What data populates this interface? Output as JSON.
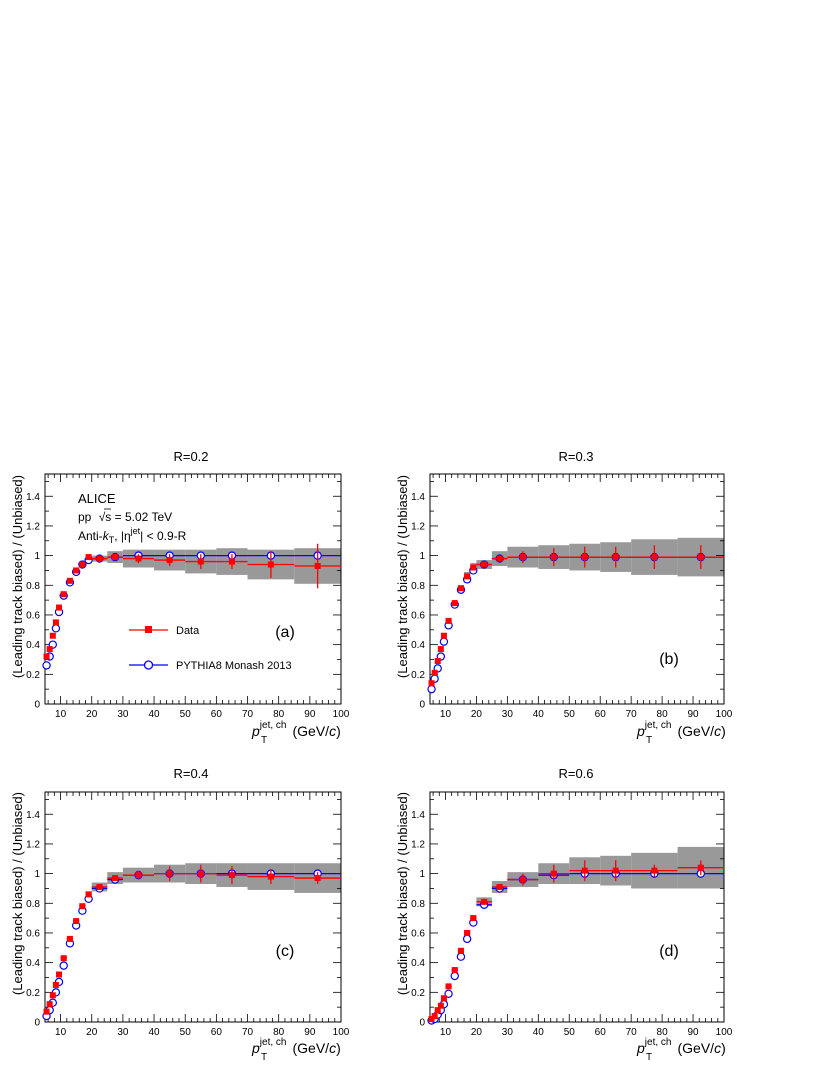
{
  "colors": {
    "data": "#ff0000",
    "pythia": "#0000ff",
    "syst_band": "#999999",
    "model_band": "#cccccc"
  },
  "common": {
    "xlabel_symbol": "p",
    "xlabel_sup": "jet, ch",
    "xlabel_sub": "T",
    "xlabel_unit_open": "(GeV/",
    "xlabel_unit_c": "c",
    "xlabel_unit_close": ")",
    "ylabel": "(Leading track biased) / (Unbiased)",
    "xlim": [
      5,
      100
    ],
    "ylim": [
      0,
      1.55
    ],
    "xticks": [
      10,
      20,
      30,
      40,
      50,
      60,
      70,
      80,
      90,
      100
    ],
    "yticks": [
      0,
      0.2,
      0.4,
      0.6,
      0.8,
      1,
      1.2,
      1.4
    ],
    "ytick_labels": [
      "0",
      "0.2",
      "0.4",
      "0.6",
      "0.8",
      "1",
      "1.2",
      "1.4"
    ]
  },
  "annotations": {
    "experiment": "ALICE",
    "energy_pp": "pp",
    "energy_sqrt": "√s",
    "energy_value": " = 5.02 TeV",
    "algo_pre": "Anti-",
    "algo_k": "k",
    "algo_sub": "T",
    "algo_mid": ", |η",
    "algo_sup": "jet",
    "algo_post": "| < 0.9-R"
  },
  "legend": {
    "data": "Data",
    "pythia": "PYTHIA8 Monash 2013",
    "placement": "left-middle"
  },
  "chart_data": [
    {
      "type": "scatter",
      "title": "R=0.2",
      "panel_label": "(a)",
      "series": [
        {
          "name": "Data",
          "x": [
            5.5,
            6.5,
            7.5,
            8.5,
            9.5,
            11,
            13,
            15,
            17,
            19,
            22.5,
            27.5,
            35,
            45,
            55,
            65,
            77.5,
            92.5
          ],
          "xerr": [
            0.5,
            0.5,
            0.5,
            0.5,
            0.5,
            1,
            1,
            1,
            1,
            1,
            2.5,
            2.5,
            5,
            5,
            5,
            5,
            7.5,
            7.5
          ],
          "y": [
            0.32,
            0.37,
            0.46,
            0.55,
            0.65,
            0.74,
            0.83,
            0.9,
            0.94,
            0.99,
            0.98,
            0.99,
            0.98,
            0.97,
            0.96,
            0.96,
            0.94,
            0.93
          ],
          "yerr": [
            0.01,
            0.01,
            0.01,
            0.01,
            0.01,
            0.01,
            0.01,
            0.01,
            0.01,
            0.01,
            0.01,
            0.01,
            0.03,
            0.04,
            0.05,
            0.05,
            0.09,
            0.15
          ],
          "syst": [
            0.01,
            0.01,
            0.01,
            0.01,
            0.01,
            0.01,
            0.01,
            0.01,
            0.01,
            0.01,
            0.02,
            0.04,
            0.06,
            0.07,
            0.08,
            0.09,
            0.1,
            0.12
          ]
        },
        {
          "name": "PYTHIA8 Monash 2013",
          "x": [
            5.5,
            6.5,
            7.5,
            8.5,
            9.5,
            11,
            13,
            15,
            17,
            19,
            22.5,
            27.5,
            35,
            45,
            55,
            65,
            77.5,
            92.5
          ],
          "xerr": [
            0.5,
            0.5,
            0.5,
            0.5,
            0.5,
            1,
            1,
            1,
            1,
            1,
            2.5,
            2.5,
            5,
            5,
            5,
            5,
            7.5,
            7.5
          ],
          "y": [
            0.26,
            0.32,
            0.4,
            0.51,
            0.62,
            0.73,
            0.82,
            0.89,
            0.94,
            0.97,
            0.98,
            0.99,
            1.0,
            1.0,
            1.0,
            1.0,
            1.0,
            1.0
          ]
        }
      ]
    },
    {
      "type": "scatter",
      "title": "R=0.3",
      "panel_label": "(b)",
      "series": [
        {
          "name": "Data",
          "x": [
            5.5,
            6.5,
            7.5,
            8.5,
            9.5,
            11,
            13,
            15,
            17,
            19,
            22.5,
            27.5,
            35,
            45,
            55,
            65,
            77.5,
            92.5
          ],
          "xerr": [
            0.5,
            0.5,
            0.5,
            0.5,
            0.5,
            1,
            1,
            1,
            1,
            1,
            2.5,
            2.5,
            5,
            5,
            5,
            5,
            7.5,
            7.5
          ],
          "y": [
            0.14,
            0.21,
            0.29,
            0.37,
            0.46,
            0.56,
            0.68,
            0.78,
            0.86,
            0.92,
            0.94,
            0.98,
            0.99,
            0.99,
            0.99,
            0.99,
            0.99,
            0.99
          ],
          "yerr": [
            0.01,
            0.01,
            0.01,
            0.01,
            0.01,
            0.01,
            0.01,
            0.01,
            0.01,
            0.01,
            0.01,
            0.02,
            0.04,
            0.06,
            0.07,
            0.07,
            0.08,
            0.08
          ],
          "syst": [
            0.01,
            0.01,
            0.01,
            0.01,
            0.01,
            0.01,
            0.01,
            0.02,
            0.03,
            0.03,
            0.03,
            0.05,
            0.07,
            0.08,
            0.09,
            0.1,
            0.12,
            0.13
          ]
        },
        {
          "name": "PYTHIA8 Monash 2013",
          "x": [
            5.5,
            6.5,
            7.5,
            8.5,
            9.5,
            11,
            13,
            15,
            17,
            19,
            22.5,
            27.5,
            35,
            45,
            55,
            65,
            77.5,
            92.5
          ],
          "xerr": [
            0.5,
            0.5,
            0.5,
            0.5,
            0.5,
            1,
            1,
            1,
            1,
            1,
            2.5,
            2.5,
            5,
            5,
            5,
            5,
            7.5,
            7.5
          ],
          "y": [
            0.1,
            0.17,
            0.24,
            0.32,
            0.42,
            0.53,
            0.67,
            0.77,
            0.84,
            0.9,
            0.94,
            0.98,
            0.99,
            0.99,
            0.99,
            0.99,
            0.99,
            0.99
          ]
        }
      ]
    },
    {
      "type": "scatter",
      "title": "R=0.4",
      "panel_label": "(c)",
      "series": [
        {
          "name": "Data",
          "x": [
            5.5,
            6.5,
            7.5,
            8.5,
            9.5,
            11,
            13,
            15,
            17,
            19,
            22.5,
            27.5,
            35,
            45,
            55,
            65,
            77.5,
            92.5
          ],
          "xerr": [
            0.5,
            0.5,
            0.5,
            0.5,
            0.5,
            1,
            1,
            1,
            1,
            1,
            2.5,
            2.5,
            5,
            5,
            5,
            5,
            7.5,
            7.5
          ],
          "y": [
            0.07,
            0.12,
            0.18,
            0.25,
            0.32,
            0.43,
            0.56,
            0.68,
            0.78,
            0.86,
            0.91,
            0.97,
            0.99,
            1.0,
            1.0,
            0.99,
            0.98,
            0.97
          ],
          "yerr": [
            0.01,
            0.01,
            0.01,
            0.01,
            0.01,
            0.01,
            0.01,
            0.01,
            0.01,
            0.01,
            0.01,
            0.02,
            0.03,
            0.05,
            0.06,
            0.06,
            0.05,
            0.04
          ],
          "syst": [
            0.01,
            0.01,
            0.01,
            0.01,
            0.01,
            0.01,
            0.01,
            0.01,
            0.02,
            0.02,
            0.03,
            0.04,
            0.05,
            0.06,
            0.07,
            0.08,
            0.09,
            0.1
          ]
        },
        {
          "name": "PYTHIA8 Monash 2013",
          "x": [
            5.5,
            6.5,
            7.5,
            8.5,
            9.5,
            11,
            13,
            15,
            17,
            19,
            22.5,
            27.5,
            35,
            45,
            55,
            65,
            77.5,
            92.5
          ],
          "xerr": [
            0.5,
            0.5,
            0.5,
            0.5,
            0.5,
            1,
            1,
            1,
            1,
            1,
            2.5,
            2.5,
            5,
            5,
            5,
            5,
            7.5,
            7.5
          ],
          "y": [
            0.04,
            0.08,
            0.13,
            0.2,
            0.27,
            0.38,
            0.53,
            0.65,
            0.75,
            0.83,
            0.9,
            0.96,
            0.99,
            1.0,
            1.0,
            1.0,
            1.0,
            1.0
          ]
        }
      ]
    },
    {
      "type": "scatter",
      "title": "R=0.6",
      "panel_label": "(d)",
      "series": [
        {
          "name": "Data",
          "x": [
            5.5,
            6.5,
            7.5,
            8.5,
            9.5,
            11,
            13,
            15,
            17,
            19,
            22.5,
            27.5,
            35,
            45,
            55,
            65,
            77.5,
            92.5
          ],
          "xerr": [
            0.5,
            0.5,
            0.5,
            0.5,
            0.5,
            1,
            1,
            1,
            1,
            1,
            2.5,
            2.5,
            5,
            5,
            5,
            5,
            7.5,
            7.5
          ],
          "y": [
            0.02,
            0.04,
            0.08,
            0.11,
            0.16,
            0.24,
            0.35,
            0.48,
            0.6,
            0.7,
            0.81,
            0.91,
            0.96,
            1.0,
            1.02,
            1.02,
            1.02,
            1.04
          ],
          "yerr": [
            0.01,
            0.01,
            0.01,
            0.01,
            0.01,
            0.01,
            0.01,
            0.01,
            0.01,
            0.01,
            0.02,
            0.02,
            0.04,
            0.06,
            0.07,
            0.07,
            0.04,
            0.05
          ],
          "syst": [
            0.01,
            0.01,
            0.01,
            0.01,
            0.01,
            0.01,
            0.01,
            0.01,
            0.02,
            0.02,
            0.03,
            0.04,
            0.05,
            0.07,
            0.09,
            0.1,
            0.12,
            0.14
          ]
        },
        {
          "name": "PYTHIA8 Monash 2013",
          "x": [
            5.5,
            6.5,
            7.5,
            8.5,
            9.5,
            11,
            13,
            15,
            17,
            19,
            22.5,
            27.5,
            35,
            45,
            55,
            65,
            77.5,
            92.5
          ],
          "xerr": [
            0.5,
            0.5,
            0.5,
            0.5,
            0.5,
            1,
            1,
            1,
            1,
            1,
            2.5,
            2.5,
            5,
            5,
            5,
            5,
            7.5,
            7.5
          ],
          "y": [
            0.01,
            0.02,
            0.05,
            0.08,
            0.12,
            0.19,
            0.31,
            0.44,
            0.56,
            0.67,
            0.79,
            0.9,
            0.96,
            0.99,
            1.0,
            1.0,
            1.0,
            1.0
          ]
        }
      ]
    }
  ]
}
